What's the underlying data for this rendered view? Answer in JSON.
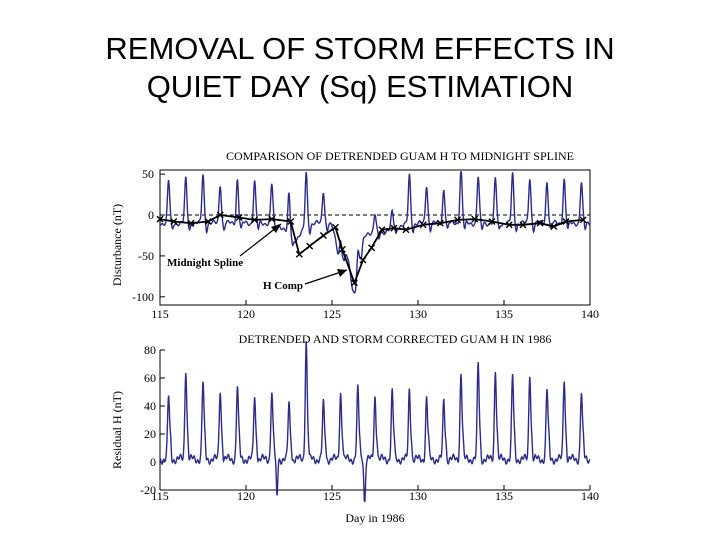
{
  "slide": {
    "title_line1": "REMOVAL OF STORM EFFECTS IN",
    "title_line2": "QUIET DAY (Sq) ESTIMATION"
  },
  "colors": {
    "trace": "#2b2b8c",
    "spline": "#000000",
    "axis": "#000000"
  },
  "chart_data": [
    {
      "type": "line",
      "title": "COMPARISON OF DETRENDED GUAM H TO MIDNIGHT SPLINE",
      "xlabel": "",
      "ylabel": "Disturbance (nT)",
      "xlim": [
        115,
        140
      ],
      "ylim": [
        -110,
        55
      ],
      "xticks": [
        115,
        120,
        125,
        130,
        135,
        140
      ],
      "yticks": [
        50,
        0,
        -50,
        -100
      ],
      "zero_line": "dashed",
      "series": [
        {
          "name": "H Comp",
          "description": "detrended Guam H component, daily (Sq) oscillation",
          "daily_peaks": [
            40,
            42,
            48,
            36,
            42,
            40,
            36,
            38,
            55,
            28,
            12,
            20,
            10,
            8,
            48,
            35,
            30,
            55,
            45,
            42,
            48,
            44,
            40,
            42,
            38
          ],
          "storm_days": [
            125.5,
            126.3
          ],
          "storm_minimum": -95
        },
        {
          "name": "Midnight Spline",
          "x": [
            115.0,
            115.8,
            116.8,
            117.8,
            118.5,
            119.6,
            120.5,
            121.5,
            122.6,
            123.1,
            123.7,
            124.5,
            125.2,
            125.6,
            126.3,
            126.8,
            127.3,
            127.9,
            128.6,
            129.3,
            130.3,
            131.3,
            132.3,
            133.3,
            134.3,
            135.3,
            136.1,
            137.1,
            137.9,
            138.6,
            139.6
          ],
          "y": [
            -5,
            -8,
            -10,
            -8,
            0,
            -3,
            -6,
            -5,
            -8,
            -48,
            -38,
            -25,
            -15,
            -42,
            -83,
            -55,
            -40,
            -18,
            -16,
            -18,
            -12,
            -10,
            -6,
            -5,
            -8,
            -12,
            -12,
            -10,
            -14,
            -8,
            -6
          ]
        }
      ],
      "annotations": [
        {
          "text": "Midnight Spline",
          "points_to": "Midnight Spline"
        },
        {
          "text": "H Comp",
          "points_to": "H Comp"
        }
      ]
    },
    {
      "type": "line",
      "title": "DETRENDED AND STORM CORRECTED GUAM H IN 1986",
      "xlabel": "Day in 1986",
      "ylabel": "Residual H (nT)",
      "xlim": [
        115,
        140
      ],
      "ylim": [
        -20,
        80
      ],
      "xticks": [
        115,
        120,
        125,
        130,
        135,
        140
      ],
      "yticks": [
        80,
        60,
        40,
        20,
        0,
        -20
      ],
      "series": [
        {
          "name": "Residual H",
          "daily_peaks": [
            45,
            65,
            55,
            50,
            52,
            45,
            48,
            40,
            85,
            40,
            48,
            50,
            45,
            48,
            50,
            44,
            42,
            62,
            68,
            65,
            60,
            62,
            50,
            58,
            48
          ],
          "dips": [
            {
              "day": 121.8,
              "value": -25
            },
            {
              "day": 126.9,
              "value": -30
            }
          ]
        }
      ]
    }
  ]
}
